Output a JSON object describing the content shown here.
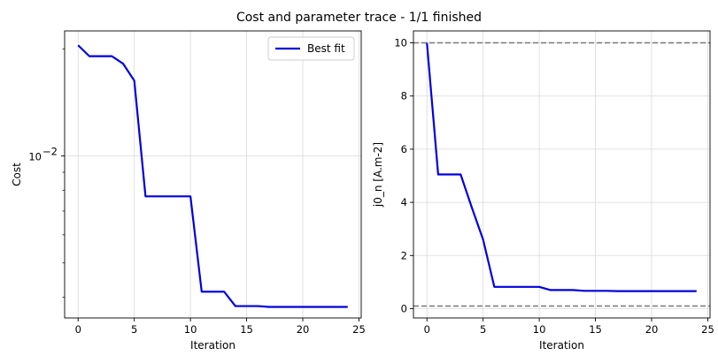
{
  "figure": {
    "title": "Cost and parameter trace - 1/1 finished"
  },
  "chart_data": [
    {
      "type": "line",
      "xlabel": "Iteration",
      "ylabel": "Cost",
      "yscale": "log",
      "xlim": [
        -1.2,
        25.2
      ],
      "ylim": [
        0.0035,
        0.0225
      ],
      "xticks": [
        0,
        5,
        10,
        15,
        20,
        25
      ],
      "xtick_labels": [
        "0",
        "5",
        "10",
        "15",
        "20",
        "25"
      ],
      "yticks_major": [
        0.01
      ],
      "ytick_labels": [
        "10",
        "−2"
      ],
      "yticks_minor": [
        0.004,
        0.005,
        0.006,
        0.007,
        0.008,
        0.009,
        0.02
      ],
      "grid": true,
      "legend": {
        "position": "top-right",
        "entries": [
          "Best fit"
        ]
      },
      "series": [
        {
          "name": "Best fit",
          "color": "#0000dd",
          "x": [
            0,
            1,
            2,
            3,
            4,
            5,
            6,
            7,
            8,
            9,
            10,
            11,
            12,
            13,
            14,
            15,
            16,
            17,
            18,
            19,
            20,
            21,
            22,
            23,
            24
          ],
          "y": [
            0.0205,
            0.0191,
            0.0191,
            0.0191,
            0.0182,
            0.0163,
            0.0077,
            0.0077,
            0.0077,
            0.0077,
            0.0077,
            0.00415,
            0.00415,
            0.00415,
            0.00378,
            0.00378,
            0.00378,
            0.00376,
            0.00376,
            0.00376,
            0.00376,
            0.00376,
            0.00376,
            0.00376,
            0.00376
          ]
        }
      ]
    },
    {
      "type": "line",
      "xlabel": "Iteration",
      "ylabel": "j0_n [A.m-2]",
      "yscale": "linear",
      "xlim": [
        -1.2,
        25.2
      ],
      "ylim": [
        -0.35,
        10.45
      ],
      "xticks": [
        0,
        5,
        10,
        15,
        20,
        25
      ],
      "xtick_labels": [
        "0",
        "5",
        "10",
        "15",
        "20",
        "25"
      ],
      "yticks": [
        0,
        2,
        4,
        6,
        8,
        10
      ],
      "ytick_labels": [
        "0",
        "2",
        "4",
        "6",
        "8",
        "10"
      ],
      "grid": true,
      "bounds": {
        "values": [
          0.1,
          10
        ],
        "color": "#777777",
        "style": "dashed"
      },
      "series": [
        {
          "color": "#0000dd",
          "x": [
            0,
            1,
            2,
            3,
            4,
            5,
            6,
            7,
            8,
            9,
            10,
            11,
            12,
            13,
            14,
            15,
            16,
            17,
            18,
            19,
            20,
            21,
            22,
            23,
            24
          ],
          "y": [
            10.0,
            5.05,
            5.05,
            5.05,
            3.8,
            2.6,
            0.82,
            0.82,
            0.82,
            0.82,
            0.82,
            0.7,
            0.7,
            0.7,
            0.67,
            0.67,
            0.67,
            0.66,
            0.66,
            0.66,
            0.66,
            0.66,
            0.66,
            0.66,
            0.66
          ]
        }
      ]
    }
  ]
}
